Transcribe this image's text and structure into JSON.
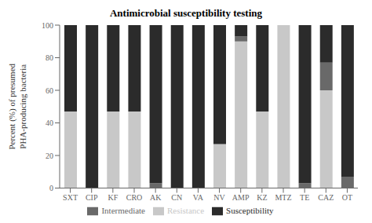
{
  "chart_data": {
    "type": "bar",
    "title": "Antimicrobial susceptibility testing",
    "ylabel": "Percent (%) of presumed\nPHA-producing bacteria",
    "categories": [
      "SXT",
      "CIP",
      "KF",
      "CRO",
      "AK",
      "CN",
      "VA",
      "NV",
      "AMP",
      "KZ",
      "MTZ",
      "TE",
      "CAZ",
      "OT"
    ],
    "series": [
      {
        "name": "Resistance",
        "color": "#c8c8c8",
        "values": [
          47,
          0,
          47,
          47,
          0,
          0,
          0,
          27,
          90,
          47,
          100,
          0,
          60,
          0
        ]
      },
      {
        "name": "Intermediate",
        "color": "#696969",
        "values": [
          0,
          0,
          0,
          0,
          3,
          0,
          0,
          0,
          3,
          0,
          0,
          3,
          17,
          7
        ]
      },
      {
        "name": "Susceptibility",
        "color": "#2b2b2b",
        "values": [
          53,
          100,
          53,
          53,
          97,
          100,
          100,
          73,
          7,
          53,
          0,
          97,
          23,
          93
        ]
      }
    ],
    "ylim": [
      0,
      100
    ],
    "yticks": [
      0,
      20,
      40,
      60,
      80,
      100
    ],
    "stacked": true,
    "grid": false,
    "legend": "bottom"
  }
}
